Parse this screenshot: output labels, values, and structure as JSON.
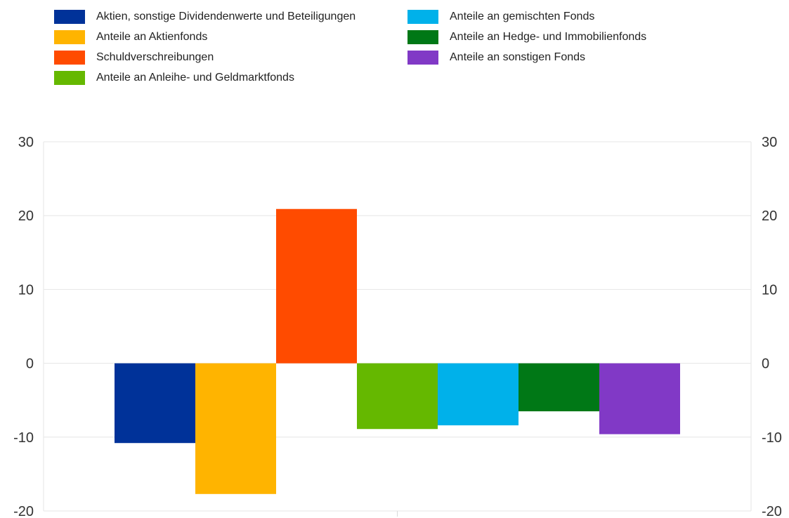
{
  "chart_data": {
    "type": "bar",
    "title": "",
    "xlabel": "",
    "ylabel": "",
    "ylim": [
      -20,
      30
    ],
    "yticks": [
      30,
      20,
      10,
      0,
      -10,
      -20
    ],
    "grid": true,
    "secondary_y_axis": true,
    "legend_position": "top",
    "series": [
      {
        "name": "Aktien, sonstige Dividendenwerte und Beteiligungen",
        "value": -10.8,
        "color": "#003299"
      },
      {
        "name": "Anteile an Aktienfonds",
        "value": -17.7,
        "color": "#FFB400"
      },
      {
        "name": "Schuldverschreibungen",
        "value": 20.9,
        "color": "#FF4B00"
      },
      {
        "name": "Anteile an Anleihe- und Geldmarktfonds",
        "value": -8.9,
        "color": "#65B800"
      },
      {
        "name": "Anteile an gemischten Fonds",
        "value": -8.4,
        "color": "#00B1EA"
      },
      {
        "name": "Anteile an Hedge- und Immobilienfonds",
        "value": -6.5,
        "color": "#007816"
      },
      {
        "name": "Anteile an sonstigen Fonds",
        "value": -9.6,
        "color": "#8139C6"
      }
    ]
  }
}
